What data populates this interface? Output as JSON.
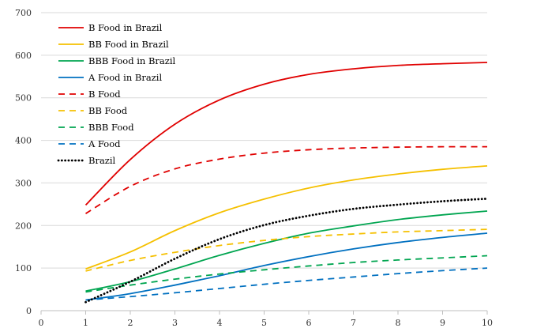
{
  "chart_data": {
    "type": "line",
    "title": "",
    "xlabel": "",
    "ylabel": "",
    "xlim": [
      0,
      10
    ],
    "ylim": [
      0,
      700
    ],
    "x_ticks": [
      0,
      1,
      2,
      3,
      4,
      5,
      6,
      7,
      8,
      9,
      10
    ],
    "y_ticks": [
      0,
      100,
      200,
      300,
      400,
      500,
      600,
      700
    ],
    "grid": {
      "horizontal": true,
      "vertical": false
    },
    "legend_position": "top-left",
    "x": [
      1,
      2,
      3,
      4,
      5,
      6,
      7,
      8,
      9,
      10
    ],
    "series": [
      {
        "name": "B Food in Brazil",
        "color": "#e00000",
        "dash": "solid",
        "values": [
          248,
          355,
          438,
          495,
          532,
          555,
          568,
          576,
          580,
          583
        ]
      },
      {
        "name": "BB Food in Brazil",
        "color": "#f5c000",
        "dash": "solid",
        "values": [
          98,
          138,
          188,
          230,
          262,
          288,
          307,
          321,
          332,
          340
        ]
      },
      {
        "name": "BBB Food in Brazil",
        "color": "#00a550",
        "dash": "solid",
        "values": [
          46,
          68,
          98,
          130,
          158,
          182,
          199,
          214,
          225,
          234
        ]
      },
      {
        "name": "A Food in Brazil",
        "color": "#0070c0",
        "dash": "solid",
        "values": [
          25,
          40,
          60,
          82,
          106,
          127,
          145,
          160,
          172,
          182
        ]
      },
      {
        "name": "B Food",
        "color": "#e00000",
        "dash": "dashed",
        "values": [
          228,
          292,
          333,
          356,
          370,
          378,
          382,
          384,
          385,
          385
        ]
      },
      {
        "name": "BB Food",
        "color": "#f5c000",
        "dash": "dashed",
        "values": [
          93,
          118,
          137,
          153,
          165,
          174,
          180,
          185,
          188,
          191
        ]
      },
      {
        "name": "BBB Food",
        "color": "#00a550",
        "dash": "dashed",
        "values": [
          44,
          60,
          74,
          86,
          96,
          105,
          113,
          119,
          124,
          129
        ]
      },
      {
        "name": "A Food",
        "color": "#0070c0",
        "dash": "dashed",
        "values": [
          25,
          33,
          42,
          52,
          62,
          71,
          79,
          87,
          94,
          100
        ]
      },
      {
        "name": "Brazil",
        "color": "#000000",
        "dash": "dotted",
        "values": [
          20,
          68,
          122,
          168,
          201,
          223,
          239,
          249,
          257,
          263
        ]
      }
    ]
  }
}
